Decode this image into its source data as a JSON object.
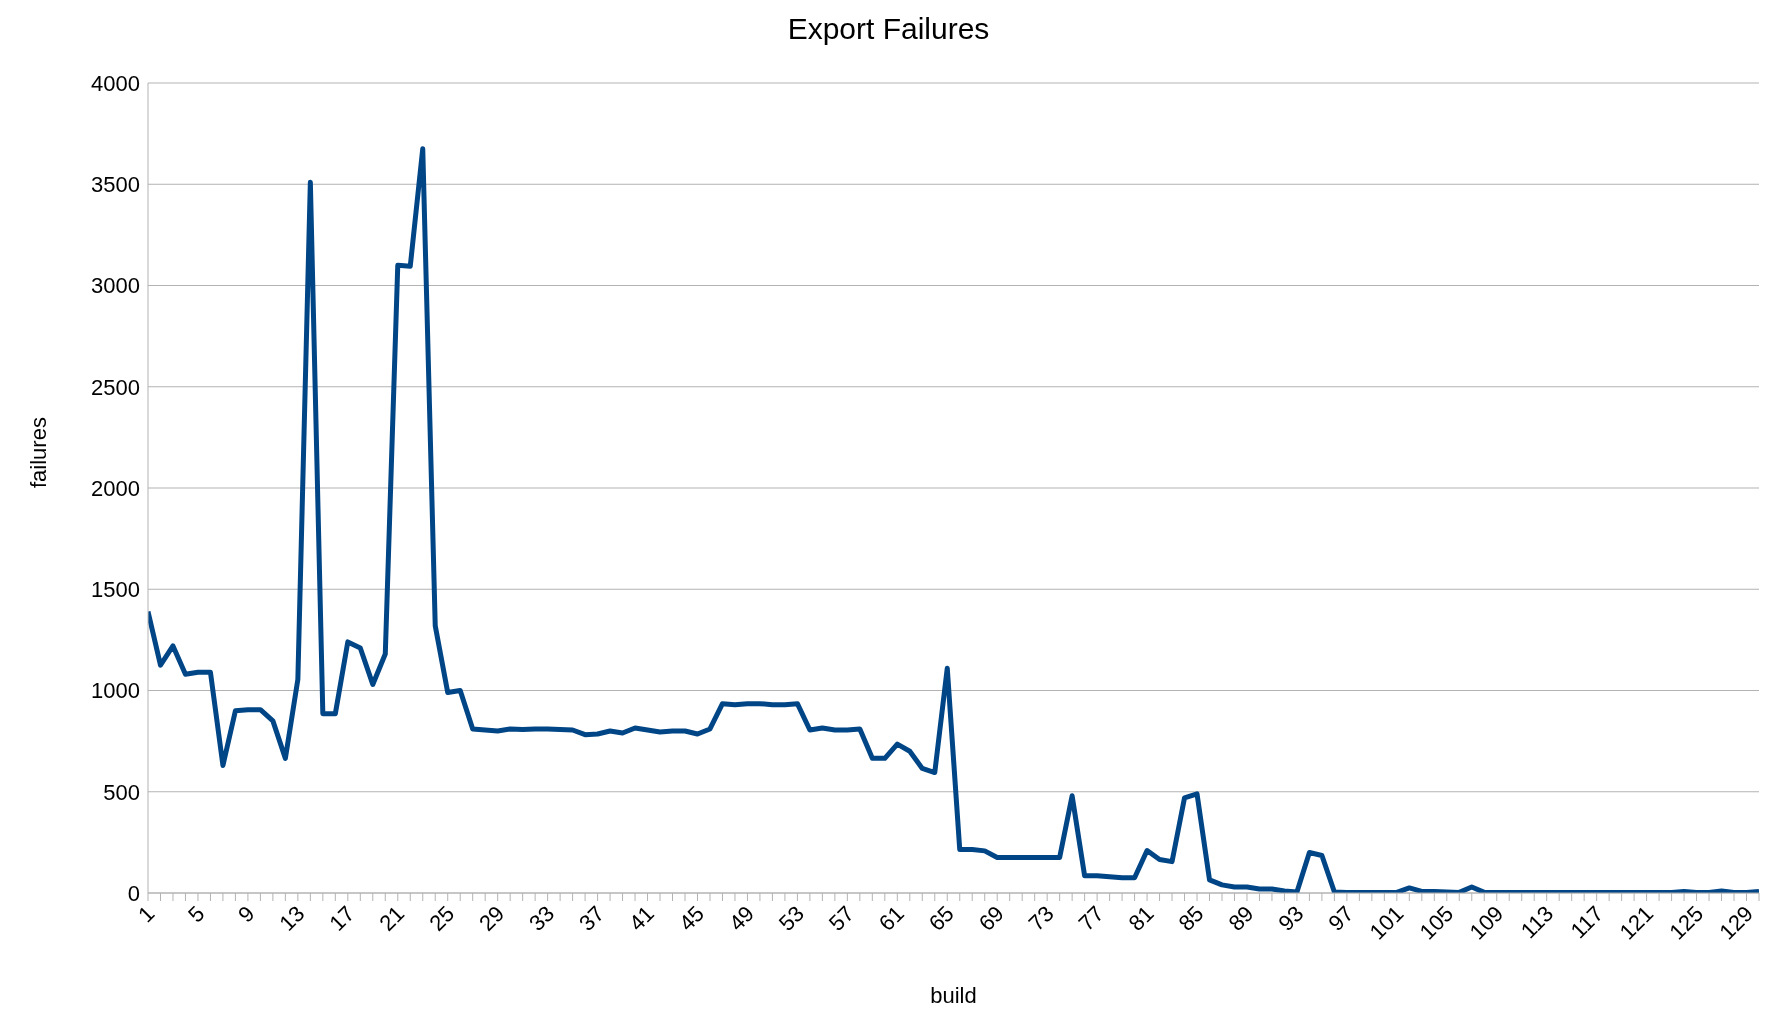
{
  "chart_data": {
    "type": "line",
    "title": "Export Failures",
    "xlabel": "build",
    "ylabel": "failures",
    "categories": [
      "1",
      null,
      null,
      null,
      "5",
      null,
      null,
      null,
      "9",
      null,
      null,
      null,
      "13",
      null,
      null,
      null,
      "17",
      null,
      null,
      null,
      "21",
      null,
      null,
      null,
      "25",
      null,
      null,
      null,
      "29",
      null,
      null,
      null,
      "33",
      null,
      null,
      null,
      "37",
      null,
      null,
      null,
      "41",
      null,
      null,
      null,
      "45",
      null,
      null,
      null,
      "49",
      null,
      null,
      null,
      "53",
      null,
      null,
      null,
      "57",
      null,
      null,
      null,
      "61",
      null,
      null,
      null,
      "65",
      null,
      null,
      null,
      "69",
      null,
      null,
      null,
      "73",
      null,
      null,
      null,
      "77",
      null,
      null,
      null,
      "81",
      null,
      null,
      null,
      "85",
      null,
      null,
      null,
      "89",
      null,
      null,
      null,
      "93",
      null,
      null,
      null,
      "97",
      null,
      null,
      null,
      "101",
      null,
      null,
      null,
      "105",
      null,
      null,
      null,
      "109",
      null,
      null,
      null,
      "113",
      null,
      null,
      null,
      "117",
      null,
      null,
      null,
      "121",
      null,
      null,
      null,
      "125",
      null,
      null,
      null,
      "129",
      null
    ],
    "series": [
      {
        "color": "#004586",
        "values": [
          1390,
          1125,
          1220,
          1080,
          1090,
          1090,
          630,
          900,
          905,
          905,
          850,
          665,
          1055,
          3510,
          885,
          885,
          1240,
          1210,
          1030,
          1180,
          3100,
          3095,
          3675,
          1320,
          990,
          1000,
          810,
          805,
          800,
          810,
          808,
          810,
          810,
          808,
          805,
          782,
          785,
          800,
          790,
          815,
          805,
          795,
          800,
          800,
          785,
          810,
          935,
          930,
          935,
          935,
          930,
          930,
          935,
          805,
          815,
          805,
          805,
          810,
          665,
          665,
          735,
          700,
          615,
          595,
          1110,
          215,
          215,
          208,
          175,
          175,
          175,
          175,
          175,
          175,
          480,
          85,
          85,
          80,
          75,
          75,
          210,
          165,
          155,
          470,
          490,
          65,
          40,
          30,
          30,
          20,
          20,
          10,
          5,
          200,
          185,
          5,
          3,
          3,
          3,
          3,
          3,
          25,
          8,
          8,
          5,
          3,
          30,
          3,
          3,
          3,
          3,
          3,
          3,
          3,
          3,
          3,
          3,
          3,
          3,
          3,
          3,
          3,
          3,
          8,
          3,
          3,
          10,
          3,
          3,
          8
        ]
      }
    ],
    "ylim": [
      0,
      4000
    ],
    "yticks": [
      0,
      500,
      1000,
      1500,
      2000,
      2500,
      3000,
      3500,
      4000
    ],
    "grid": "y",
    "legend": false,
    "marker": "none",
    "line_style": "solid"
  }
}
